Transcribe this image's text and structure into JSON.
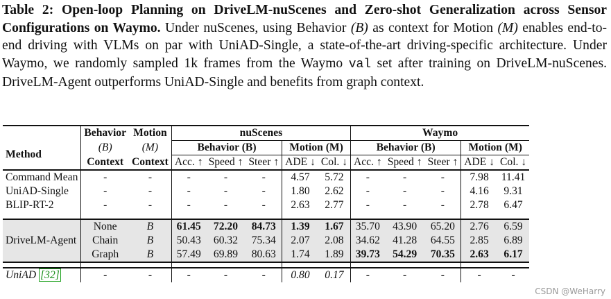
{
  "caption": {
    "label": "Table 2:",
    "title": "Open-loop Planning on DriveLM-nuScenes and Zero-shot Generalization across Sensor Configurations on Waymo.",
    "body_1": "Under nuScenes, using Behavior",
    "sym_b": "(B)",
    "body_2": "as context for Motion",
    "sym_m": "(M)",
    "body_3": "enables end-to-end driving with VLMs on par with UniAD-Single, a state-of-the-art driving-specific architecture. Under Waymo, we randomly sampled 1k frames from the Waymo",
    "mono": "val",
    "body_4": "set after training on DriveLM-nuScenes. DriveLM-Agent outperforms UniAD-Single and benefits from graph context."
  },
  "header": {
    "behavior_ctx": [
      "Behavior",
      "(B)",
      "Context"
    ],
    "motion_ctx": [
      "Motion",
      "(M)",
      "Context"
    ],
    "method": "Method",
    "nuscenes": "nuScenes",
    "waymo": "Waymo",
    "behavior_group": "Behavior (B)",
    "motion_group": "Motion (M)",
    "cols": [
      "Acc. ↑",
      "Speed ↑",
      "Steer ↑",
      "ADE ↓",
      "Col. ↓"
    ]
  },
  "rows_a": [
    [
      "Command Mean",
      "-",
      "-",
      "-",
      "-",
      "-",
      "4.57",
      "5.72",
      "-",
      "-",
      "-",
      "7.98",
      "11.41"
    ],
    [
      "UniAD-Single",
      "-",
      "-",
      "-",
      "-",
      "-",
      "1.80",
      "2.62",
      "-",
      "-",
      "-",
      "4.16",
      "9.31"
    ],
    [
      "BLIP-RT-2",
      "-",
      "-",
      "-",
      "-",
      "-",
      "2.63",
      "2.77",
      "-",
      "-",
      "-",
      "2.78",
      "6.47"
    ]
  ],
  "agent": {
    "name": "DriveLM-Agent",
    "rows": [
      [
        "None",
        "B",
        "61.45",
        "72.20",
        "84.73",
        "1.39",
        "1.67",
        "35.70",
        "43.90",
        "65.20",
        "2.76",
        "6.59"
      ],
      [
        "Chain",
        "B",
        "50.43",
        "60.32",
        "75.34",
        "2.07",
        "2.08",
        "34.62",
        "41.28",
        "64.55",
        "2.85",
        "6.89"
      ],
      [
        "Graph",
        "B",
        "57.49",
        "69.89",
        "80.63",
        "1.74",
        "1.89",
        "39.73",
        "54.29",
        "70.35",
        "2.63",
        "6.17"
      ]
    ]
  },
  "uniad": {
    "name": "UniAD",
    "cite": "[32]",
    "cells": [
      "-",
      "-",
      "-",
      "-",
      "-",
      "0.80",
      "0.17",
      "-",
      "-",
      "-",
      "-",
      "-"
    ]
  },
  "watermark": "CSDN @WeHarry"
}
